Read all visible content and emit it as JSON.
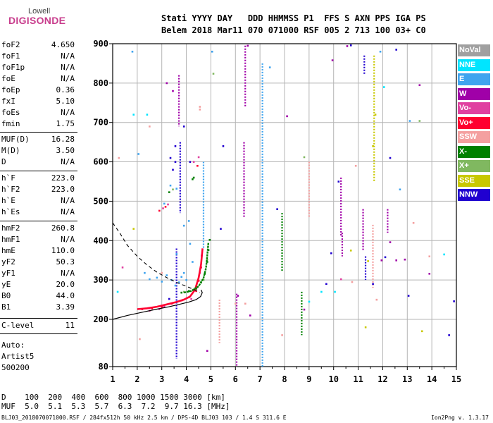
{
  "logo": {
    "top": "Lowell",
    "bottom": "DIGISONDE"
  },
  "header": {
    "line1": "Stati YYYY DAY   DDD HHMMSS P1  FFS S AXN PPS IGA PS",
    "line2": "Belem 2018 Mar11 070 071000 RSF 005 2 713 100 03+ C0"
  },
  "params": [
    {
      "name": "foF2",
      "value": "4.650"
    },
    {
      "name": "foF1",
      "value": "N/A"
    },
    {
      "name": "foF1p",
      "value": "N/A"
    },
    {
      "name": "foE",
      "value": "N/A"
    },
    {
      "name": "foEp",
      "value": "0.36"
    },
    {
      "name": "fxI",
      "value": "5.10"
    },
    {
      "name": "foEs",
      "value": "N/A"
    },
    {
      "name": "fmin",
      "value": "1.75"
    },
    {
      "name": "MUF(D)",
      "value": "16.28"
    },
    {
      "name": "M(D)",
      "value": "3.50"
    },
    {
      "name": "D",
      "value": "N/A"
    },
    {
      "name": "h`F",
      "value": "223.0"
    },
    {
      "name": "h`F2",
      "value": "223.0"
    },
    {
      "name": "h`E",
      "value": "N/A"
    },
    {
      "name": "h`Es",
      "value": "N/A"
    },
    {
      "name": "hmF2",
      "value": "260.8"
    },
    {
      "name": "hmF1",
      "value": "N/A"
    },
    {
      "name": "hmE",
      "value": "110.0"
    },
    {
      "name": "yF2",
      "value": "50.3"
    },
    {
      "name": "yF1",
      "value": "N/A"
    },
    {
      "name": "yE",
      "value": "20.0"
    },
    {
      "name": "B0",
      "value": "44.0"
    },
    {
      "name": "B1",
      "value": "3.39"
    },
    {
      "name": "C-level",
      "value": "11"
    }
  ],
  "auto": [
    "Auto:",
    "Artist5",
    "500200"
  ],
  "distance_table": {
    "d_line": "D    100  200  400  600  800 1000 1500 3000 [km]",
    "muf_line": "MUF  5.0  5.1  5.3  5.7  6.3  7.2  9.7 16.3 [MHz]"
  },
  "footer": "BLJ03_2018070071000.RSF / 284fx512h 50 kHz 2.5 km / DPS-4D BLJ03 103 / 1.4 S 311.6 E",
  "version": "Ion2Png v. 1.3.17",
  "legend": [
    {
      "label": "NoVal",
      "color": "#a0a0a0"
    },
    {
      "label": "NNE",
      "color": "#00e5ff"
    },
    {
      "label": "E",
      "color": "#3fa4ef"
    },
    {
      "label": "W",
      "color": "#a000a8"
    },
    {
      "label": "Vo-",
      "color": "#e040a0"
    },
    {
      "label": "Vo+",
      "color": "#ff0030"
    },
    {
      "label": "SSW",
      "color": "#f4a0a0"
    },
    {
      "label": "X-",
      "color": "#008000"
    },
    {
      "label": "X+",
      "color": "#80b860"
    },
    {
      "label": "SSE",
      "color": "#c8c800"
    },
    {
      "label": "NNW",
      "color": "#2000d0"
    }
  ],
  "chart_data": {
    "type": "scatter",
    "xlim": [
      1,
      15
    ],
    "ylim": [
      80,
      900
    ],
    "xticks": [
      "1",
      "2",
      "3",
      "4",
      "5",
      "6",
      "7",
      "8",
      "9",
      "10",
      "11",
      "12",
      "13",
      "14",
      "15"
    ],
    "yticks": [
      "900",
      "800",
      "700",
      "600",
      "500",
      "400",
      "300",
      "200",
      "80"
    ],
    "grid": true,
    "traces": {
      "profile": [
        [
          1.0,
          200
        ],
        [
          1.6,
          210
        ],
        [
          2.2,
          218
        ],
        [
          2.8,
          226
        ],
        [
          3.3,
          232
        ],
        [
          3.7,
          238
        ],
        [
          4.1,
          244
        ],
        [
          4.4,
          250
        ],
        [
          4.58,
          258
        ],
        [
          4.65,
          268
        ],
        [
          4.6,
          275
        ]
      ],
      "extrapolated": [
        [
          1.0,
          445
        ],
        [
          1.3,
          418
        ],
        [
          1.6,
          388
        ],
        [
          2.0,
          360
        ],
        [
          2.4,
          338
        ],
        [
          2.8,
          320
        ],
        [
          3.2,
          306
        ],
        [
          3.6,
          294
        ],
        [
          4.0,
          284
        ],
        [
          4.3,
          276
        ],
        [
          4.55,
          268
        ]
      ],
      "o_trace": [
        [
          2.0,
          226
        ],
        [
          2.4,
          228
        ],
        [
          2.8,
          232
        ],
        [
          3.2,
          238
        ],
        [
          3.6,
          244
        ],
        [
          3.9,
          250
        ],
        [
          4.15,
          258
        ],
        [
          4.35,
          275
        ],
        [
          4.5,
          305
        ],
        [
          4.6,
          340
        ],
        [
          4.66,
          380
        ]
      ],
      "x_trace": [
        [
          3.9,
          268
        ],
        [
          4.2,
          272
        ],
        [
          4.5,
          284
        ],
        [
          4.7,
          305
        ],
        [
          4.8,
          330
        ],
        [
          4.85,
          360
        ],
        [
          4.9,
          395
        ]
      ]
    },
    "scatter_groups": [
      {
        "mode": "Vo-",
        "color": "#e040a0",
        "points": [
          [
            2.5,
            222
          ],
          [
            2.9,
            226
          ],
          [
            3.1,
            232
          ],
          [
            4.2,
            252
          ],
          [
            4.45,
            282
          ],
          [
            4.55,
            318
          ],
          [
            4.62,
            362
          ],
          [
            3.05,
            482
          ],
          [
            3.25,
            492
          ],
          [
            4.3,
            600
          ],
          [
            4.5,
            612
          ],
          [
            1.4,
            332
          ],
          [
            10.3,
            302
          ]
        ]
      },
      {
        "mode": "Vo+",
        "color": "#ff0030",
        "points": [
          [
            2.2,
            226
          ],
          [
            2.6,
            228
          ],
          [
            3.0,
            232
          ],
          [
            3.4,
            240
          ],
          [
            3.8,
            248
          ],
          [
            4.1,
            256
          ],
          [
            4.4,
            272
          ],
          [
            4.5,
            298
          ],
          [
            4.6,
            332
          ],
          [
            2.9,
            476
          ],
          [
            3.15,
            486
          ],
          [
            4.45,
            590
          ]
        ]
      },
      {
        "mode": "X-",
        "color": "#008000",
        "points": [
          [
            3.8,
            268
          ],
          [
            4.1,
            272
          ],
          [
            4.4,
            278
          ],
          [
            4.6,
            294
          ],
          [
            4.75,
            316
          ],
          [
            4.85,
            346
          ],
          [
            4.9,
            376
          ],
          [
            4.95,
            402
          ],
          [
            3.3,
            523
          ],
          [
            4.25,
            556
          ],
          [
            4.3,
            560
          ]
        ]
      },
      {
        "mode": "X+",
        "color": "#80b860",
        "points": [
          [
            3.9,
            270
          ],
          [
            4.3,
            276
          ],
          [
            4.7,
            300
          ],
          [
            4.85,
            352
          ],
          [
            5.1,
            824
          ],
          [
            13.5,
            704
          ],
          [
            3.45,
            530
          ],
          [
            8.8,
            612
          ]
        ]
      },
      {
        "mode": "E",
        "color": "#3fa4ef",
        "points": [
          [
            2.5,
            302
          ],
          [
            2.8,
            306
          ],
          [
            3.0,
            296
          ],
          [
            3.2,
            312
          ],
          [
            3.4,
            300
          ],
          [
            3.55,
            286
          ],
          [
            3.7,
            294
          ],
          [
            3.8,
            308
          ],
          [
            3.9,
            318
          ],
          [
            4.0,
            300
          ],
          [
            4.25,
            346
          ],
          [
            4.15,
            392
          ],
          [
            3.6,
            366
          ],
          [
            2.3,
            318
          ],
          [
            3.9,
            438
          ],
          [
            4.1,
            450
          ],
          [
            3.1,
            494
          ],
          [
            3.35,
            540
          ],
          [
            3.6,
            532
          ],
          [
            7.4,
            840
          ],
          [
            5.05,
            880
          ],
          [
            12.7,
            530
          ],
          [
            13.1,
            704
          ],
          [
            11.9,
            880
          ],
          [
            2.05,
            620
          ],
          [
            1.8,
            880
          ]
        ]
      },
      {
        "mode": "W",
        "color": "#a000a8",
        "points": [
          [
            9.95,
            858
          ],
          [
            10.55,
            894
          ],
          [
            8.1,
            716
          ],
          [
            11.95,
            350
          ],
          [
            12.3,
            396
          ],
          [
            12.55,
            350
          ],
          [
            6.1,
            260
          ],
          [
            6.6,
            210
          ],
          [
            4.85,
            120
          ],
          [
            8.8,
            225
          ],
          [
            3.45,
            780
          ],
          [
            3.2,
            800
          ],
          [
            6.5,
            895
          ],
          [
            13.5,
            795
          ],
          [
            12.9,
            352
          ],
          [
            13.9,
            316
          ]
        ]
      },
      {
        "mode": "NNW",
        "color": "#2000d0",
        "points": [
          [
            3.55,
            600
          ],
          [
            3.45,
            580
          ],
          [
            3.55,
            640
          ],
          [
            3.9,
            690
          ],
          [
            4.15,
            600
          ],
          [
            3.3,
            252
          ],
          [
            5.5,
            640
          ],
          [
            5.4,
            430
          ],
          [
            9.7,
            290
          ],
          [
            11.6,
            290
          ],
          [
            12.3,
            610
          ],
          [
            12.55,
            885
          ],
          [
            10.7,
            896
          ],
          [
            10.2,
            550
          ],
          [
            13.05,
            260
          ],
          [
            14.9,
            246
          ],
          [
            14.7,
            160
          ],
          [
            9.9,
            368
          ],
          [
            12.1,
            358
          ],
          [
            7.7,
            480
          ],
          [
            3.35,
            610
          ]
        ]
      },
      {
        "mode": "SSW",
        "color": "#f4a0a0",
        "points": [
          [
            4.55,
            733
          ],
          [
            4.55,
            740
          ],
          [
            10.9,
            590
          ],
          [
            13.9,
            360
          ],
          [
            13.25,
            445
          ],
          [
            11.75,
            250
          ],
          [
            6.4,
            240
          ],
          [
            6.0,
            240
          ],
          [
            2.1,
            150
          ],
          [
            1.25,
            610
          ],
          [
            10.75,
            295
          ],
          [
            2.5,
            690
          ],
          [
            3.0,
            318
          ],
          [
            7.9,
            160
          ]
        ]
      },
      {
        "mode": "SSE",
        "color": "#c8c800",
        "points": [
          [
            11.4,
            348
          ],
          [
            11.6,
            640
          ],
          [
            11.7,
            720
          ],
          [
            10.7,
            375
          ],
          [
            11.3,
            180
          ],
          [
            1.85,
            430
          ],
          [
            13.6,
            170
          ]
        ]
      },
      {
        "mode": "NNE",
        "color": "#00e5ff",
        "points": [
          [
            12.05,
            790
          ],
          [
            2.4,
            720
          ],
          [
            1.85,
            720
          ],
          [
            1.2,
            270
          ],
          [
            9.0,
            245
          ],
          [
            9.5,
            270
          ],
          [
            14.5,
            365
          ],
          [
            10.05,
            270
          ]
        ]
      }
    ],
    "vertical_lines": [
      {
        "mode": "E",
        "color": "#3fa4ef",
        "x": 7.1,
        "y": [
          80,
          850
        ]
      },
      {
        "mode": "W",
        "color": "#a000a8",
        "x": 6.05,
        "y": [
          80,
          265
        ]
      },
      {
        "mode": "W",
        "color": "#a000a8",
        "x": 6.35,
        "y": [
          460,
          650
        ]
      },
      {
        "mode": "W",
        "color": "#a000a8",
        "x": 6.4,
        "y": [
          740,
          895
        ]
      },
      {
        "mode": "NNW",
        "color": "#2000d0",
        "x": 3.6,
        "y": [
          100,
          380
        ]
      },
      {
        "mode": "NNW",
        "color": "#2000d0",
        "x": 3.75,
        "y": [
          470,
          650
        ]
      },
      {
        "mode": "W",
        "color": "#a000a8",
        "x": 3.7,
        "y": [
          690,
          820
        ]
      },
      {
        "mode": "SSE",
        "color": "#c8c800",
        "x": 11.65,
        "y": [
          550,
          870
        ]
      },
      {
        "mode": "NNW",
        "color": "#2000d0",
        "x": 11.3,
        "y": [
          300,
          360
        ]
      },
      {
        "mode": "W",
        "color": "#a000a8",
        "x": 10.35,
        "y": [
          360,
          420
        ]
      },
      {
        "mode": "NNW",
        "color": "#2000d0",
        "x": 11.25,
        "y": [
          820,
          870
        ]
      },
      {
        "mode": "W",
        "color": "#a000a8",
        "x": 11.2,
        "y": [
          375,
          480
        ]
      },
      {
        "mode": "E",
        "color": "#3fa4ef",
        "x": 4.7,
        "y": [
          380,
          600
        ]
      },
      {
        "mode": "X-",
        "color": "#008000",
        "x": 8.7,
        "y": [
          160,
          270
        ]
      },
      {
        "mode": "SSW",
        "color": "#f4a0a0",
        "x": 9.0,
        "y": [
          460,
          600
        ]
      },
      {
        "mode": "W",
        "color": "#a000a8",
        "x": 10.3,
        "y": [
          410,
          560
        ]
      },
      {
        "mode": "SSW",
        "color": "#f4a0a0",
        "x": 11.6,
        "y": [
          280,
          440
        ]
      },
      {
        "mode": "SSW",
        "color": "#f4a0a0",
        "x": 5.35,
        "y": [
          140,
          250
        ]
      },
      {
        "mode": "X-",
        "color": "#008000",
        "x": 7.9,
        "y": [
          320,
          470
        ]
      },
      {
        "mode": "W",
        "color": "#a000a8",
        "x": 12.2,
        "y": [
          420,
          480
        ]
      }
    ]
  }
}
